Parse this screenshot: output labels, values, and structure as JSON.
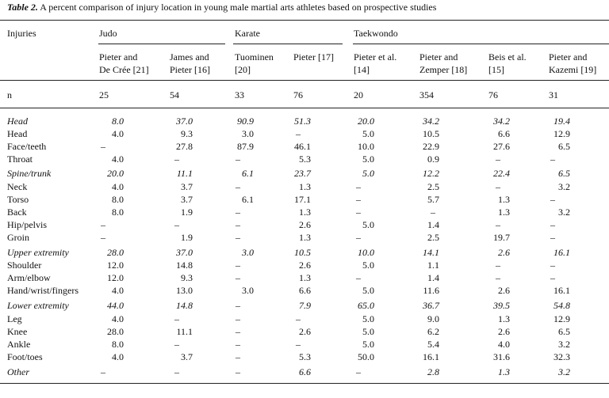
{
  "caption": {
    "label": "Table 2.",
    "text": "A percent comparison of injury location in young male martial arts athletes based on prospective studies"
  },
  "header": {
    "row_label": "Injuries",
    "groups": [
      "Judo",
      "Karate",
      "Taekwondo"
    ],
    "studies": [
      [
        "Pieter and",
        "De Crée [21]"
      ],
      [
        "James and",
        "Pieter [16]"
      ],
      [
        "Tuominen",
        "[20]"
      ],
      [
        "Pieter [17]",
        ""
      ],
      [
        "Pieter et al.",
        "[14]"
      ],
      [
        "Pieter and",
        "Zemper [18]"
      ],
      [
        "Beis et al.",
        "[15]"
      ],
      [
        "Pieter and",
        "Kazemi [19]"
      ]
    ],
    "n_label": "n",
    "n_values": [
      "25",
      "54",
      "33",
      "76",
      "20",
      "354",
      "76",
      "31"
    ]
  },
  "rows": [
    {
      "label": "Head",
      "italic": true,
      "values": [
        "8.0",
        "37.0",
        "90.9",
        "51.3",
        "20.0",
        "34.2",
        "34.2",
        "19.4"
      ]
    },
    {
      "label": "Head",
      "italic": false,
      "values": [
        "4.0",
        "9.3",
        "3.0",
        "–",
        "5.0",
        "10.5",
        "6.6",
        "12.9"
      ]
    },
    {
      "label": "Face/teeth",
      "italic": false,
      "values": [
        "–",
        "27.8",
        "87.9",
        "46.1",
        "10.0",
        "22.9",
        "27.6",
        "6.5"
      ]
    },
    {
      "label": "Throat",
      "italic": false,
      "values": [
        "4.0",
        "–",
        "–",
        "5.3",
        "5.0",
        "0.9",
        "–",
        "–"
      ]
    },
    {
      "label": "Spine/trunk",
      "italic": true,
      "values": [
        "20.0",
        "11.1",
        "6.1",
        "23.7",
        "5.0",
        "12.2",
        "22.4",
        "6.5"
      ]
    },
    {
      "label": "Neck",
      "italic": false,
      "values": [
        "4.0",
        "3.7",
        "–",
        "1.3",
        "–",
        "2.5",
        "–",
        "3.2"
      ]
    },
    {
      "label": "Torso",
      "italic": false,
      "values": [
        "8.0",
        "3.7",
        "6.1",
        "17.1",
        "–",
        "5.7",
        "1.3",
        "–"
      ]
    },
    {
      "label": "Back",
      "italic": false,
      "values": [
        "8.0",
        "1.9",
        "–",
        "1.3",
        "–",
        "–",
        "1.3",
        "3.2"
      ]
    },
    {
      "label": "Hip/pelvis",
      "italic": false,
      "values": [
        "–",
        "–",
        "–",
        "2.6",
        "5.0",
        "1.4",
        "–",
        "–"
      ]
    },
    {
      "label": "Groin",
      "italic": false,
      "values": [
        "–",
        "1.9",
        "–",
        "1.3",
        "–",
        "2.5",
        "19.7",
        "–"
      ]
    },
    {
      "label": "Upper extremity",
      "italic": true,
      "values": [
        "28.0",
        "37.0",
        "3.0",
        "10.5",
        "10.0",
        "14.1",
        "2.6",
        "16.1"
      ]
    },
    {
      "label": "Shoulder",
      "italic": false,
      "values": [
        "12.0",
        "14.8",
        "–",
        "2.6",
        "5.0",
        "1.1",
        "–",
        "–"
      ]
    },
    {
      "label": "Arm/elbow",
      "italic": false,
      "values": [
        "12.0",
        "9.3",
        "–",
        "1.3",
        "–",
        "1.4",
        "–",
        "–"
      ]
    },
    {
      "label": "Hand/wrist/fingers",
      "italic": false,
      "values": [
        "4.0",
        "13.0",
        "3.0",
        "6.6",
        "5.0",
        "11.6",
        "2.6",
        "16.1"
      ]
    },
    {
      "label": "Lower extremity",
      "italic": true,
      "values": [
        "44.0",
        "14.8",
        "–",
        "7.9",
        "65.0",
        "36.7",
        "39.5",
        "54.8"
      ]
    },
    {
      "label": "Leg",
      "italic": false,
      "values": [
        "4.0",
        "–",
        "–",
        "–",
        "5.0",
        "9.0",
        "1.3",
        "12.9"
      ]
    },
    {
      "label": "Knee",
      "italic": false,
      "values": [
        "28.0",
        "11.1",
        "–",
        "2.6",
        "5.0",
        "6.2",
        "2.6",
        "6.5"
      ]
    },
    {
      "label": "Ankle",
      "italic": false,
      "values": [
        "8.0",
        "–",
        "–",
        "–",
        "5.0",
        "5.4",
        "4.0",
        "3.2"
      ]
    },
    {
      "label": "Foot/toes",
      "italic": false,
      "values": [
        "4.0",
        "3.7",
        "–",
        "5.3",
        "50.0",
        "16.1",
        "31.6",
        "32.3"
      ]
    },
    {
      "label": "Other",
      "italic": true,
      "values": [
        "–",
        "–",
        "–",
        "6.6",
        "–",
        "2.8",
        "1.3",
        "3.2"
      ]
    }
  ]
}
